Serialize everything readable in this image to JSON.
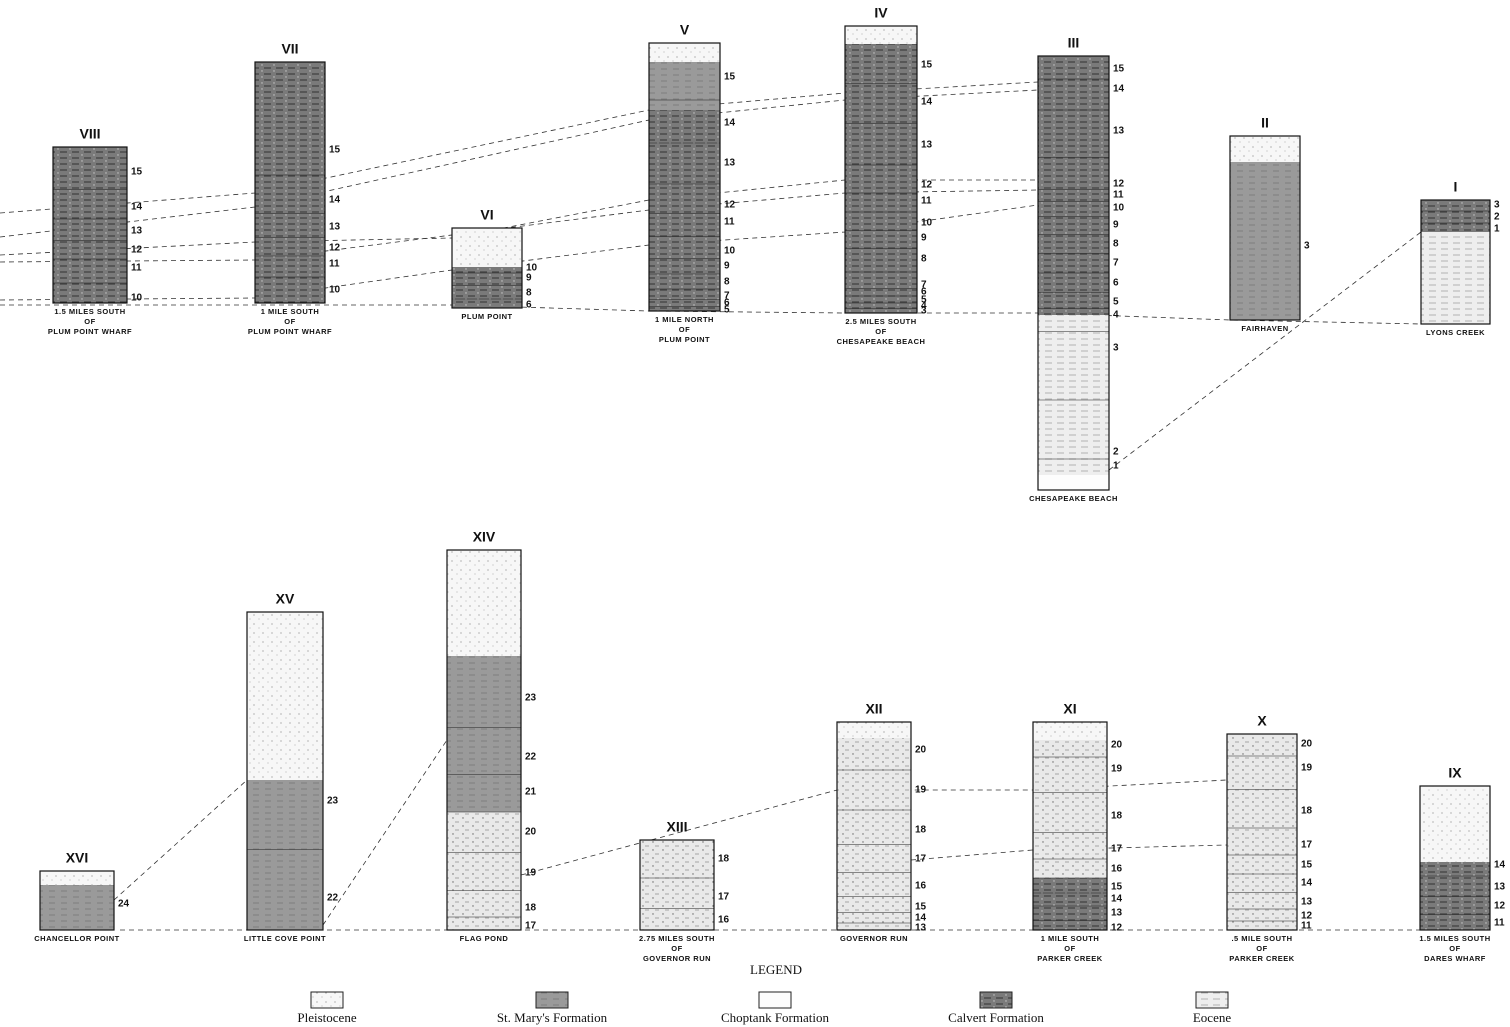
{
  "columns": [
    {
      "numeral": "VIII",
      "layers": [
        "15",
        "14",
        "13",
        "12",
        "11",
        "10"
      ],
      "location": [
        "1.5 MILES SOUTH",
        "OF",
        "PLUM POINT WHARF"
      ]
    },
    {
      "numeral": "VII",
      "layers": [
        "15",
        "14",
        "13",
        "12",
        "11",
        "10"
      ],
      "location": [
        "1 MILE SOUTH",
        "OF",
        "PLUM POINT WHARF"
      ]
    },
    {
      "numeral": "VI",
      "layers": [
        "10",
        "9",
        "8",
        "6"
      ],
      "location": [
        "PLUM POINT"
      ]
    },
    {
      "numeral": "V",
      "layers": [
        "15",
        "14",
        "13",
        "12",
        "11",
        "10",
        "9",
        "8",
        "7",
        "6",
        "5"
      ],
      "location": [
        "1 MILE NORTH",
        "OF",
        "PLUM POINT"
      ]
    },
    {
      "numeral": "IV",
      "layers": [
        "15",
        "14",
        "13",
        "12",
        "11",
        "10",
        "9",
        "8",
        "7",
        "6",
        "5",
        "4",
        "3"
      ],
      "location": [
        "2.5 MILES SOUTH",
        "OF",
        "CHESAPEAKE BEACH"
      ]
    },
    {
      "numeral": "III",
      "layers": [
        "15",
        "14",
        "13",
        "12",
        "11",
        "10",
        "9",
        "8",
        "7",
        "6",
        "5",
        "4",
        "3",
        "2",
        "1"
      ],
      "location": [
        "CHESAPEAKE BEACH"
      ]
    },
    {
      "numeral": "II",
      "layers": [
        "3"
      ],
      "location": [
        "FAIRHAVEN"
      ]
    },
    {
      "numeral": "I",
      "layers": [
        "3",
        "2",
        "1"
      ],
      "location": [
        "LYONS CREEK"
      ]
    },
    {
      "numeral": "XVI",
      "layers": [
        "24"
      ],
      "location": [
        "CHANCELLOR POINT"
      ]
    },
    {
      "numeral": "XV",
      "layers": [
        "23",
        "22"
      ],
      "location": [
        "LITTLE COVE POINT"
      ]
    },
    {
      "numeral": "XIV",
      "layers": [
        "23",
        "22",
        "21",
        "20",
        "19",
        "18",
        "17"
      ],
      "location": [
        "FLAG POND"
      ]
    },
    {
      "numeral": "XIII",
      "layers": [
        "18",
        "17",
        "16"
      ],
      "location": [
        "2.75 MILES SOUTH",
        "OF",
        "GOVERNOR RUN"
      ]
    },
    {
      "numeral": "XII",
      "layers": [
        "20",
        "19",
        "18",
        "17",
        "16",
        "15",
        "14",
        "13"
      ],
      "location": [
        "GOVERNOR RUN"
      ]
    },
    {
      "numeral": "XI",
      "layers": [
        "20",
        "19",
        "18",
        "17",
        "16",
        "15",
        "14",
        "13",
        "12"
      ],
      "location": [
        "1 MILE SOUTH",
        "OF",
        "PARKER CREEK"
      ]
    },
    {
      "numeral": "X",
      "layers": [
        "20",
        "19",
        "18",
        "17",
        "15",
        "14",
        "13",
        "12",
        "11"
      ],
      "location": [
        ".5 MILE SOUTH",
        "OF",
        "PARKER CREEK"
      ]
    },
    {
      "numeral": "IX",
      "layers": [
        "14",
        "13",
        "12",
        "11"
      ],
      "location": [
        "1.5 MILES SOUTH",
        "OF",
        "DARES WHARF"
      ]
    }
  ],
  "legend": {
    "title": "LEGEND",
    "items": [
      "Pleistocene",
      "St. Mary's Formation",
      "Choptank Formation",
      "Calvert Formation",
      "Eocene"
    ]
  }
}
